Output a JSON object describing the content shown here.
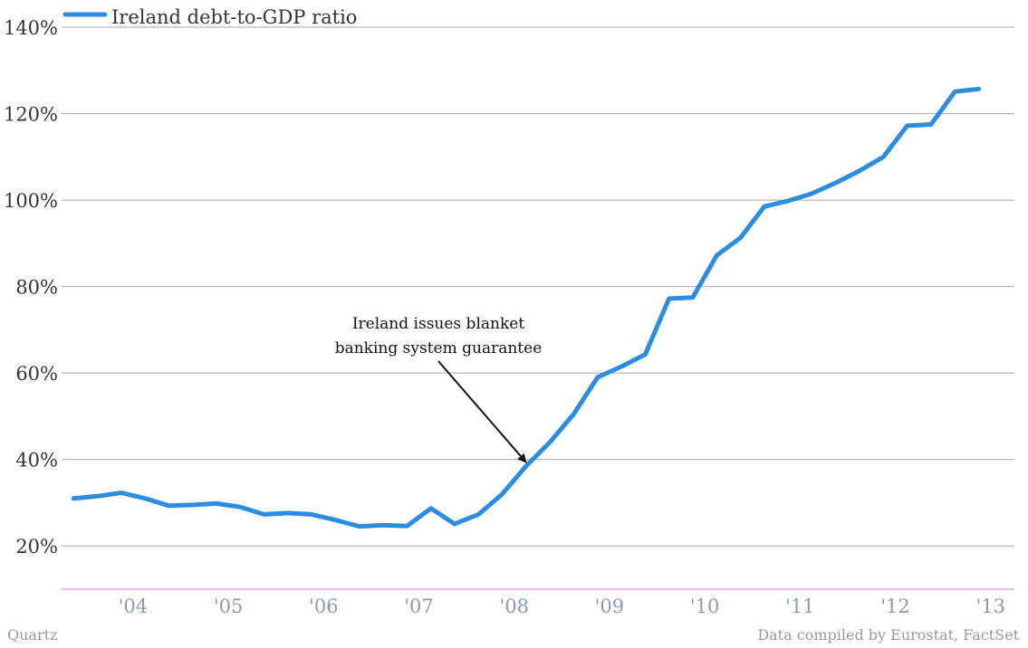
{
  "colors": {
    "line": "#2a8ce2",
    "baseline": "#e070c8",
    "grid": "#a8a8a8"
  },
  "chart_data": {
    "type": "line",
    "title": "",
    "xlabel": "",
    "ylabel": "",
    "ylim": [
      10,
      140
    ],
    "xlim": [
      2003.25,
      2013.25
    ],
    "grid": "horizontal",
    "legend": "top-left",
    "y_ticks": [
      {
        "value": 20,
        "label": "20%"
      },
      {
        "value": 40,
        "label": "40%"
      },
      {
        "value": 60,
        "label": "60%"
      },
      {
        "value": 80,
        "label": "80%"
      },
      {
        "value": 100,
        "label": "100%"
      },
      {
        "value": 120,
        "label": "120%"
      },
      {
        "value": 140,
        "label": "140%"
      }
    ],
    "x_ticks": [
      {
        "value": 2004,
        "label": "'04"
      },
      {
        "value": 2005,
        "label": "'05"
      },
      {
        "value": 2006,
        "label": "'06"
      },
      {
        "value": 2007,
        "label": "'07"
      },
      {
        "value": 2008,
        "label": "'08"
      },
      {
        "value": 2009,
        "label": "'09"
      },
      {
        "value": 2010,
        "label": "'10"
      },
      {
        "value": 2011,
        "label": "'11"
      },
      {
        "value": 2012,
        "label": "'12"
      },
      {
        "value": 2013,
        "label": "'13"
      }
    ],
    "series": [
      {
        "name": "Ireland debt-to-GDP ratio",
        "points": [
          [
            2003.375,
            31.0
          ],
          [
            2003.625,
            31.5
          ],
          [
            2003.875,
            32.3
          ],
          [
            2004.125,
            31.0
          ],
          [
            2004.375,
            29.3
          ],
          [
            2004.625,
            29.5
          ],
          [
            2004.875,
            29.8
          ],
          [
            2005.125,
            29.0
          ],
          [
            2005.375,
            27.3
          ],
          [
            2005.625,
            27.6
          ],
          [
            2005.875,
            27.3
          ],
          [
            2006.125,
            26.0
          ],
          [
            2006.375,
            24.5
          ],
          [
            2006.625,
            24.8
          ],
          [
            2006.875,
            24.6
          ],
          [
            2007.125,
            28.7
          ],
          [
            2007.375,
            25.1
          ],
          [
            2007.625,
            27.3
          ],
          [
            2007.875,
            32.0
          ],
          [
            2008.125,
            38.5
          ],
          [
            2008.375,
            44.0
          ],
          [
            2008.625,
            50.5
          ],
          [
            2008.875,
            59.0
          ],
          [
            2009.125,
            61.5
          ],
          [
            2009.375,
            64.3
          ],
          [
            2009.625,
            77.2
          ],
          [
            2009.875,
            77.5
          ],
          [
            2010.125,
            87.2
          ],
          [
            2010.375,
            91.3
          ],
          [
            2010.625,
            98.5
          ],
          [
            2010.875,
            99.8
          ],
          [
            2011.125,
            101.5
          ],
          [
            2011.375,
            104.0
          ],
          [
            2011.625,
            106.8
          ],
          [
            2011.875,
            110.0
          ],
          [
            2012.125,
            117.2
          ],
          [
            2012.375,
            117.5
          ],
          [
            2012.625,
            125.1
          ],
          [
            2012.875,
            125.7
          ]
        ]
      }
    ],
    "annotations": [
      {
        "lines": [
          "Ireland issues blanket",
          "banking system guarantee"
        ],
        "arrow_to": [
          2008.125,
          38.5
        ]
      }
    ]
  },
  "footer": {
    "left": "Quartz",
    "right": "Data compiled by Eurostat, FactSet"
  }
}
